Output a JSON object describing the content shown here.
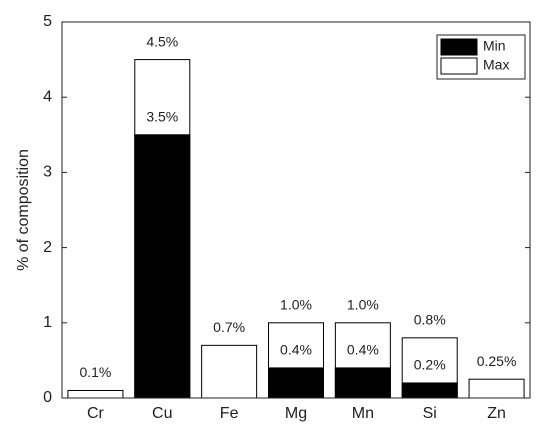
{
  "chart_data": {
    "type": "bar",
    "y_label": "% of composition",
    "categories": [
      "Cr",
      "Cu",
      "Fe",
      "Mg",
      "Mn",
      "Si",
      "Zn"
    ],
    "series": [
      {
        "name": "Min",
        "color": "#000000",
        "values": [
          null,
          3.5,
          null,
          0.4,
          0.4,
          0.2,
          null
        ],
        "value_labels": [
          null,
          "3.5%",
          null,
          "0.4%",
          "0.4%",
          "0.2%",
          null
        ]
      },
      {
        "name": "Max",
        "color": "#ffffff",
        "values": [
          0.1,
          4.5,
          0.7,
          1.0,
          1.0,
          0.8,
          0.25
        ],
        "value_labels": [
          "0.1%",
          "4.5%",
          "0.7%",
          "1.0%",
          "1.0%",
          "0.8%",
          "0.25%"
        ]
      }
    ],
    "ylim": [
      0,
      5
    ],
    "yticks": [
      0,
      1,
      2,
      3,
      4,
      5
    ],
    "legend": "top-right"
  }
}
